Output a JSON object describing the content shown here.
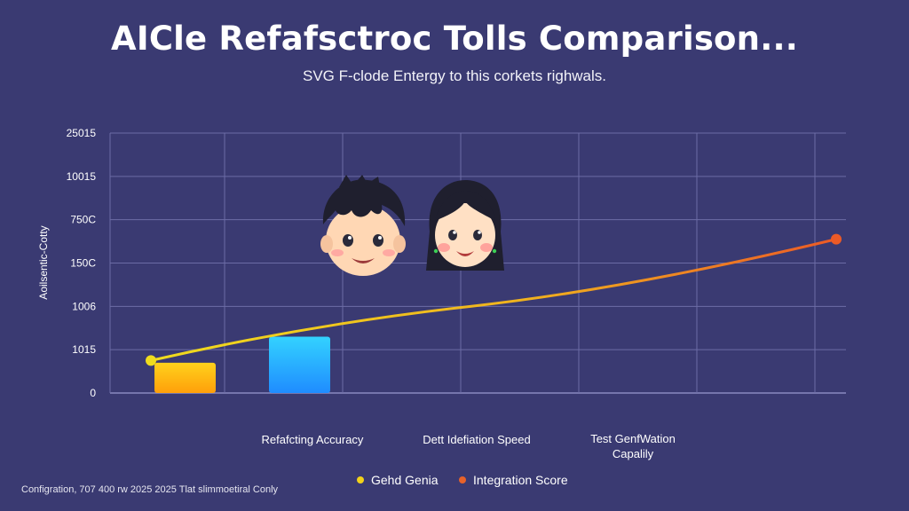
{
  "header": {
    "title": "AICle Refafsctroc Tolls Comparison...",
    "subtitle": "SVG F-clode Entergy to this corkets righwals."
  },
  "footer": {
    "note": "Configration, 707 400 rw 2025 2025 Tlat slimmoetiral Conly"
  },
  "legend": {
    "items": [
      {
        "label": "Gehd Genia",
        "color": "#f2d21a"
      },
      {
        "label": "Integration Score",
        "color": "#e8622a"
      }
    ]
  },
  "colors": {
    "background": "#3a3a72",
    "gridline": "#6c6ca6",
    "bar_gold_top": "#ffd21c",
    "bar_gold_bottom": "#ff9f0a",
    "bar_blue_top": "#33d2ff",
    "bar_blue_bottom": "#1f8cff",
    "line_start": "#f0dc1e",
    "line_end": "#ec5a26"
  },
  "icons": {
    "avatar_boy": "boy-face-icon",
    "avatar_girl": "girl-face-icon"
  },
  "chart_data": {
    "type": "bar",
    "title": "AICle Refafsctroc Tolls Comparison...",
    "ylabel": "Aoilsentic-Cotty",
    "y_tick_labels": [
      "0",
      "1015",
      "1006",
      "150C",
      "750C",
      "10015",
      "25015"
    ],
    "y_tick_positions": [
      0,
      1,
      2,
      3,
      4,
      5,
      6
    ],
    "ylim": [
      0,
      6
    ],
    "categories": [
      "Refafcting Accuracy",
      "Dett Idefiation Speed",
      "Test GenfWation Capalily"
    ],
    "series": [
      {
        "name": "Gehd Genia",
        "type": "bar",
        "values": [
          0.7,
          1.3,
          0
        ],
        "color": "#ffd21c"
      },
      {
        "name": "Integration Score",
        "type": "line",
        "values": [
          0.75,
          2.0,
          3.55
        ],
        "color": "#ec5a26"
      }
    ],
    "grid": true,
    "legend_position": "bottom-center"
  }
}
